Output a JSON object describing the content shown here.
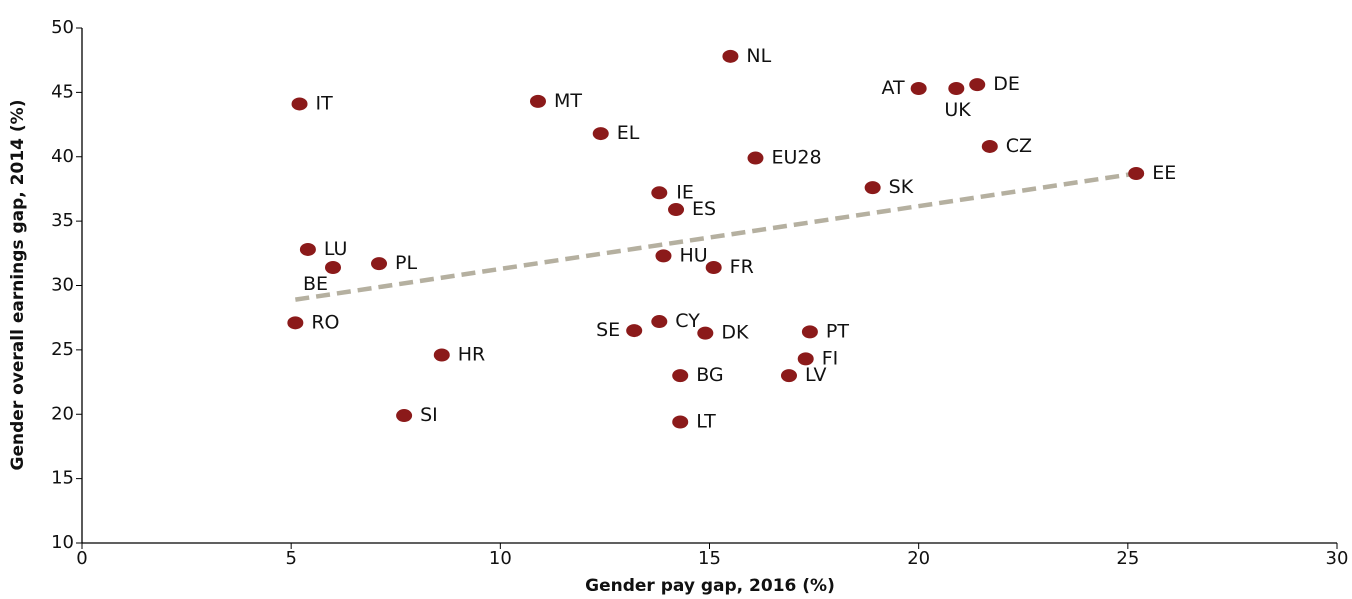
{
  "chart_data": {
    "type": "scatter",
    "xlabel": "Gender pay gap, 2016 (%)",
    "ylabel": "Gender overall earnings gap, 2014 (%)",
    "labels": [
      "IT",
      "NL",
      "MT",
      "AT",
      "UK",
      "DE",
      "EL",
      "EU28",
      "CZ",
      "EE",
      "SK",
      "IE",
      "ES",
      "LU",
      "BE",
      "PL",
      "HU",
      "FR",
      "RO",
      "SE",
      "CY",
      "DK",
      "PT",
      "HR",
      "FI",
      "BG",
      "LV",
      "SI",
      "LT"
    ],
    "x": [
      5.2,
      15.5,
      10.9,
      20.0,
      20.9,
      21.4,
      12.4,
      16.1,
      21.7,
      25.2,
      18.9,
      13.8,
      14.2,
      5.4,
      6.0,
      7.1,
      13.9,
      15.1,
      5.1,
      13.2,
      13.8,
      14.9,
      17.4,
      8.6,
      17.3,
      14.3,
      16.9,
      7.7,
      14.3
    ],
    "y": [
      44.1,
      47.8,
      44.3,
      45.3,
      45.3,
      45.6,
      41.8,
      39.9,
      40.8,
      38.7,
      37.6,
      37.2,
      35.9,
      32.8,
      31.4,
      31.7,
      32.3,
      31.4,
      27.1,
      26.5,
      27.2,
      26.3,
      26.4,
      24.6,
      24.3,
      23.0,
      23.0,
      19.9,
      19.4
    ],
    "color": "#8b1a1a",
    "trendline": {
      "x": [
        5.1,
        25.2
      ],
      "y": [
        28.9,
        38.7
      ],
      "color": "#b5b0a0"
    },
    "xlim": [
      0,
      30
    ],
    "ylim": [
      10,
      50
    ],
    "xticks": [
      0,
      5,
      10,
      15,
      20,
      25,
      30
    ],
    "yticks": [
      10,
      15,
      20,
      25,
      30,
      35,
      40,
      45,
      50
    ]
  }
}
